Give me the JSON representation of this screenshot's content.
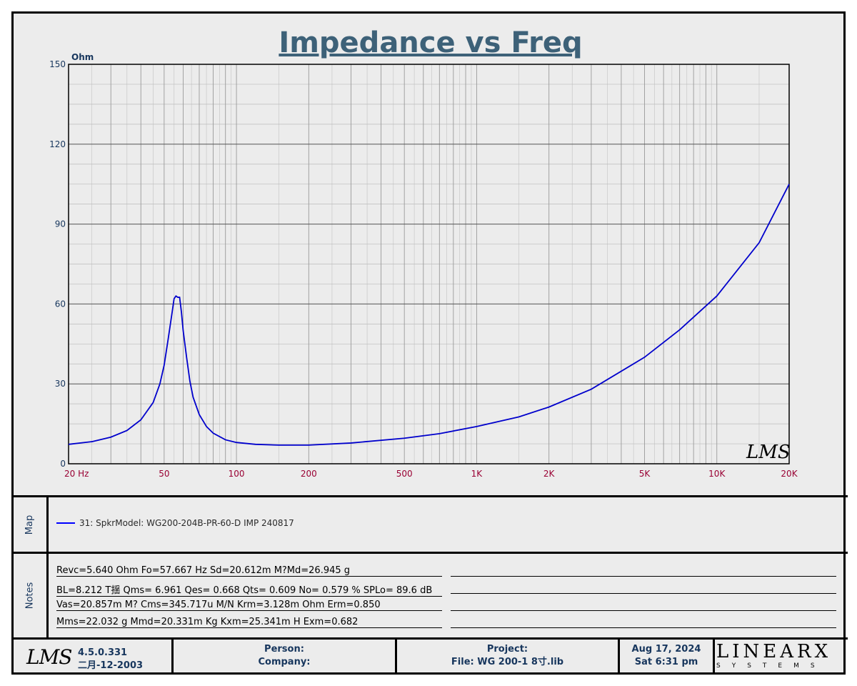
{
  "chart_data": {
    "type": "line",
    "title": "Impedance vs Freq",
    "ylabel": "Ohm",
    "xscale": "log",
    "xlim": [
      20,
      20000
    ],
    "ylim": [
      0,
      150
    ],
    "grid": true,
    "y_ticks": [
      "0",
      "30",
      "60",
      "90",
      "120",
      "150"
    ],
    "x_ticks": [
      {
        "value": 20,
        "label": "20  Hz"
      },
      {
        "value": 50,
        "label": "50"
      },
      {
        "value": 100,
        "label": "100"
      },
      {
        "value": 200,
        "label": "200"
      },
      {
        "value": 500,
        "label": "500"
      },
      {
        "value": 1000,
        "label": "1K"
      },
      {
        "value": 2000,
        "label": "2K"
      },
      {
        "value": 5000,
        "label": "5K"
      },
      {
        "value": 10000,
        "label": "10K"
      },
      {
        "value": 20000,
        "label": "20K"
      }
    ],
    "series": [
      {
        "name": "31: SpkrModel: WG200-204B-PR-60-D IMP 240817",
        "color": "#0000cc",
        "x": [
          20,
          25,
          30,
          35,
          40,
          45,
          48,
          50,
          52,
          54,
          55,
          56,
          57,
          58,
          59,
          60,
          62,
          64,
          66,
          70,
          75,
          80,
          90,
          100,
          120,
          150,
          200,
          300,
          500,
          700,
          1000,
          1500,
          2000,
          3000,
          5000,
          7000,
          10000,
          15000,
          20000
        ],
        "y": [
          7.3,
          8.3,
          10.0,
          12.5,
          16.5,
          23.0,
          30.0,
          37.0,
          47.0,
          57.0,
          62.0,
          63.0,
          62.5,
          62.5,
          57.0,
          50.0,
          40.0,
          31.0,
          25.0,
          18.5,
          14.0,
          11.5,
          9.0,
          8.0,
          7.3,
          7.0,
          7.0,
          7.8,
          9.6,
          11.3,
          14.0,
          17.6,
          21.3,
          28.0,
          40.0,
          50.3,
          63.0,
          83.0,
          105.0
        ]
      }
    ]
  },
  "watermark": "LMS",
  "map": {
    "label": "Map",
    "legend_entry": "31: SpkrModel: WG200-204B-PR-60-D IMP 240817",
    "legend_color": "#0000cc"
  },
  "notes": {
    "label": "Notes",
    "lines": [
      "Revc=5.640 Ohm  Fo=57.667 Hz  Sd=20.612m M?Md=26.945 g",
      "BL=8.212 T揺  Qms= 6.961  Qes= 0.668  Qts= 0.609  No= 0.579 %  SPLo= 89.6 dB",
      "Vas=20.857m M? Cms=345.717u M/N  Krm=3.128m Ohm  Erm=0.850",
      "Mms=22.032 g  Mmd=20.331m Kg  Kxm=25.341m H  Exm=0.682"
    ]
  },
  "footer": {
    "logo": "LMS",
    "version": "4.5.0.331",
    "version_date": "二月-12-2003",
    "person_label": "Person:",
    "company_label": "Company:",
    "project_label": "Project:",
    "file_label": "File: WG 200-1 8寸.lib",
    "date": "Aug 17, 2024",
    "time": "Sat  6:31 pm",
    "brand": "LINEARX",
    "brand_sub": "SYSTEMS"
  }
}
